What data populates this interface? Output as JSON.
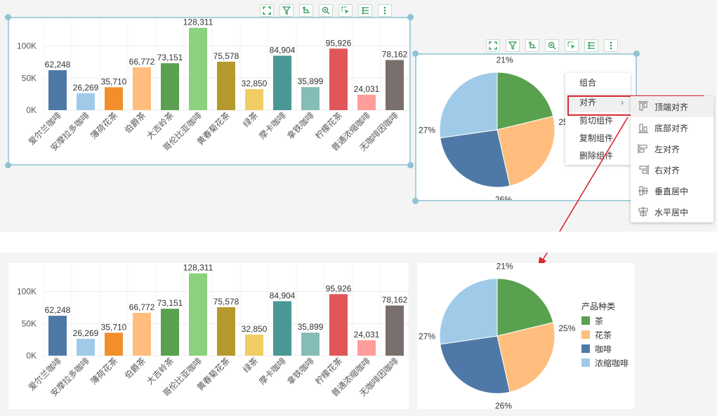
{
  "bar_chart": {
    "chart_data": {
      "type": "bar",
      "categories": [
        "爱尔兰咖啡",
        "安摩拉多咖啡",
        "薄荷花茶",
        "伯爵茶",
        "大吉岭茶",
        "哥伦比亚咖啡",
        "黄春菊花茶",
        "绿茶",
        "摩卡咖啡",
        "拿铁咖啡",
        "柠檬花茶",
        "普通浓缩咖啡",
        "无咖啡因咖啡"
      ],
      "values": [
        62248,
        26269,
        35710,
        66772,
        73151,
        128311,
        75578,
        32850,
        84904,
        35899,
        95926,
        24031,
        78162
      ],
      "data_labels": [
        "62,248",
        "26,269",
        "35,710",
        "66,772",
        "73,151",
        "128,311",
        "75,578",
        "32,850",
        "84,904",
        "35,899",
        "95,926",
        "24,031",
        "78,162"
      ],
      "colors": [
        "#4e79a7",
        "#a0cbe8",
        "#f28e2b",
        "#ffbe7d",
        "#59a14f",
        "#8cd17d",
        "#b6992d",
        "#f1ce63",
        "#499894",
        "#86bcb6",
        "#e15759",
        "#ff9d9a",
        "#79706e"
      ],
      "ytick_labels": [
        "0K",
        "50K",
        "100K"
      ],
      "ytick_values": [
        0,
        50000,
        100000
      ],
      "ylim": [
        0,
        140000
      ],
      "grid": true
    }
  },
  "pie_chart": {
    "chart_data": {
      "type": "pie",
      "labels": [
        "茶",
        "花茶",
        "咖啡",
        "浓缩咖啡"
      ],
      "values": [
        21,
        25,
        26,
        27
      ],
      "percent_labels": [
        "21%",
        "25%",
        "26%",
        "27%"
      ],
      "colors": [
        "#59a14f",
        "#ffbe7d",
        "#4e79a7",
        "#a0cbe8"
      ],
      "legend_title": "产品种类",
      "legend_position": "right"
    }
  },
  "toolbar_icons": [
    "fullscreen-icon",
    "filter-icon",
    "drill-icon",
    "zoom-icon",
    "select-icon",
    "list-icon",
    "more-icon"
  ],
  "context_menu": {
    "items": [
      "组合",
      "对齐",
      "剪切组件",
      "复制组件",
      "删除组件"
    ],
    "chevron": "›",
    "submenu": [
      "顶端对齐",
      "底部对齐",
      "左对齐",
      "右对齐",
      "垂直居中",
      "水平居中"
    ]
  },
  "colors": {
    "selection": "#a8d0dc",
    "toolbar_icon": "#2e9b57",
    "arrow": "#d9282f"
  }
}
